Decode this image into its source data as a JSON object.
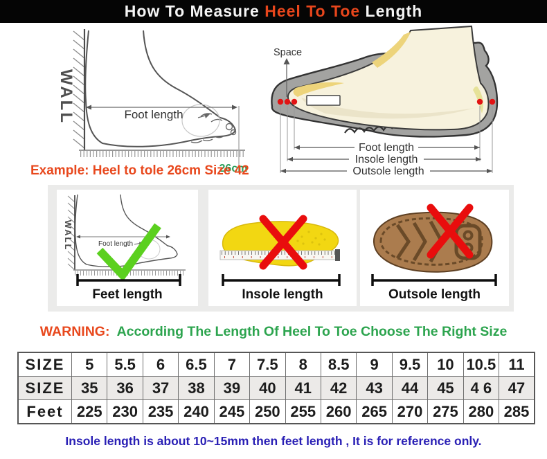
{
  "header": {
    "prefix": "How To Measure ",
    "highlight": "Heel To Toe",
    "suffix": " Length"
  },
  "measure_diagram": {
    "wall_label": "WALL",
    "foot_length_label": "Foot length",
    "example_text": "Example: Heel to tole 26cm Size 42",
    "mark_label": "26cm"
  },
  "shoe_diagram": {
    "space_label": "Space",
    "foot_length_label": "Foot length",
    "insole_length_label": "Insole length",
    "outsole_length_label": "Outsole length"
  },
  "method_panels": {
    "feet": {
      "label": "Feet length",
      "wall_label": "WALL",
      "inner_label": "Foot length",
      "mark": "check"
    },
    "insole": {
      "label": "Insole length",
      "mark": "cross"
    },
    "outsole": {
      "label": "Outsole length",
      "mark": "cross"
    }
  },
  "warning": {
    "prefix": "WARNING:",
    "text": "According The Length Of Heel To Toe Choose The Right Size"
  },
  "size_table": {
    "rows": [
      {
        "header": "SIZE",
        "values": [
          "5",
          "5.5",
          "6",
          "6.5",
          "7",
          "7.5",
          "8",
          "8.5",
          "9",
          "9.5",
          "10",
          "10.5",
          "11"
        ]
      },
      {
        "header": "SIZE",
        "values": [
          "35",
          "36",
          "37",
          "38",
          "39",
          "40",
          "41",
          "42",
          "43",
          "44",
          "45",
          "4 6",
          "47"
        ]
      },
      {
        "header": "Feet",
        "values": [
          "225",
          "230",
          "235",
          "240",
          "245",
          "250",
          "255",
          "260",
          "265",
          "270",
          "275",
          "280",
          "285"
        ]
      }
    ]
  },
  "footnote": {
    "text": "Insole length is about 10~15mm then feet length , It is for reference only."
  },
  "colors": {
    "title_bg": "#050505",
    "accent_red": "#e8481d",
    "warning_green": "#2ca44e",
    "mark_green": "#2b9e5a",
    "check_green": "#5bd01f",
    "cross_red": "#e90d0d",
    "footnote_blue": "#2a20b5",
    "shoe_gray": "#a3a3a1",
    "foot_cream": "#f7f2dd",
    "insole_yellow": "#f2d712",
    "outsole_brown": "#ab7c4e"
  }
}
